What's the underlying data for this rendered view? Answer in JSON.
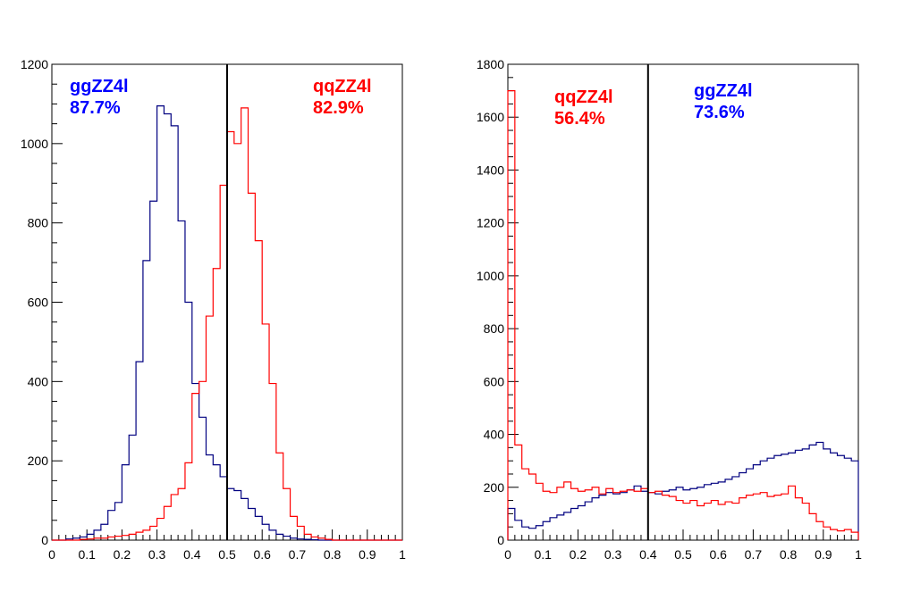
{
  "chart_data": [
    {
      "type": "histogram",
      "xlim": [
        0,
        1
      ],
      "ylim": [
        0,
        1200
      ],
      "x_ticks": [
        "0",
        "0.1",
        "0.2",
        "0.3",
        "0.4",
        "0.5",
        "0.6",
        "0.7",
        "0.8",
        "0.9",
        "1"
      ],
      "y_ticks": [
        "0",
        "200",
        "400",
        "600",
        "800",
        "1000",
        "1200"
      ],
      "bin_width": 0.02,
      "cut": 0.5,
      "series": [
        {
          "name": "ggZZ4l",
          "color": "#000080",
          "values": [
            0,
            0,
            3,
            5,
            8,
            15,
            25,
            40,
            75,
            95,
            190,
            265,
            450,
            705,
            855,
            1095,
            1075,
            1045,
            805,
            600,
            395,
            310,
            215,
            190,
            160,
            130,
            125,
            105,
            80,
            60,
            40,
            25,
            15,
            10,
            5,
            3,
            2,
            1,
            0,
            0,
            0,
            0,
            0,
            0,
            0,
            0,
            0,
            0,
            0,
            0
          ]
        },
        {
          "name": "qqZZ4l",
          "color": "#ff0000",
          "values": [
            0,
            0,
            0,
            0,
            2,
            3,
            5,
            5,
            8,
            10,
            12,
            15,
            20,
            25,
            35,
            55,
            85,
            115,
            130,
            195,
            370,
            400,
            565,
            685,
            895,
            1030,
            1000,
            1090,
            875,
            755,
            545,
            395,
            220,
            130,
            60,
            35,
            15,
            8,
            5,
            2,
            0,
            0,
            0,
            0,
            0,
            0,
            0,
            0,
            0,
            0
          ]
        }
      ],
      "labels": [
        {
          "series": "ggZZ4l",
          "name": "ggZZ4l",
          "percent": "87.7%",
          "color": "#0000ff",
          "anchor": "start"
        },
        {
          "series": "qqZZ4l",
          "name": "qqZZ4l",
          "percent": "82.9%",
          "color": "#ff0000",
          "anchor": "start"
        }
      ]
    },
    {
      "type": "histogram",
      "xlim": [
        0,
        1
      ],
      "ylim": [
        0,
        1800
      ],
      "x_ticks": [
        "0",
        "0.1",
        "0.2",
        "0.3",
        "0.4",
        "0.5",
        "0.6",
        "0.7",
        "0.8",
        "0.9",
        "1"
      ],
      "y_ticks": [
        "0",
        "200",
        "400",
        "600",
        "800",
        "1000",
        "1200",
        "1400",
        "1600",
        "1800"
      ],
      "bin_width": 0.02,
      "cut": 0.4,
      "series": [
        {
          "name": "ggZZ4l",
          "color": "#000080",
          "values": [
            120,
            75,
            50,
            45,
            55,
            70,
            85,
            95,
            105,
            120,
            130,
            145,
            160,
            170,
            180,
            175,
            180,
            190,
            205,
            185,
            180,
            175,
            185,
            190,
            200,
            190,
            195,
            200,
            210,
            215,
            220,
            230,
            240,
            255,
            270,
            285,
            300,
            310,
            320,
            325,
            330,
            340,
            345,
            360,
            370,
            345,
            330,
            320,
            310,
            300
          ]
        },
        {
          "name": "qqZZ4l",
          "color": "#ff0000",
          "values": [
            1700,
            360,
            270,
            250,
            215,
            185,
            180,
            200,
            220,
            195,
            185,
            190,
            200,
            175,
            195,
            180,
            185,
            190,
            185,
            195,
            180,
            185,
            170,
            165,
            150,
            140,
            150,
            130,
            140,
            150,
            135,
            145,
            140,
            160,
            170,
            175,
            180,
            165,
            170,
            175,
            205,
            160,
            140,
            100,
            70,
            50,
            40,
            35,
            40,
            30
          ]
        }
      ],
      "labels": [
        {
          "series": "qqZZ4l",
          "name": "qqZZ4l",
          "percent": "56.4%",
          "color": "#ff0000",
          "anchor": "start"
        },
        {
          "series": "ggZZ4l",
          "name": "ggZZ4l",
          "percent": "73.6%",
          "color": "#0000ff",
          "anchor": "start"
        }
      ]
    }
  ]
}
